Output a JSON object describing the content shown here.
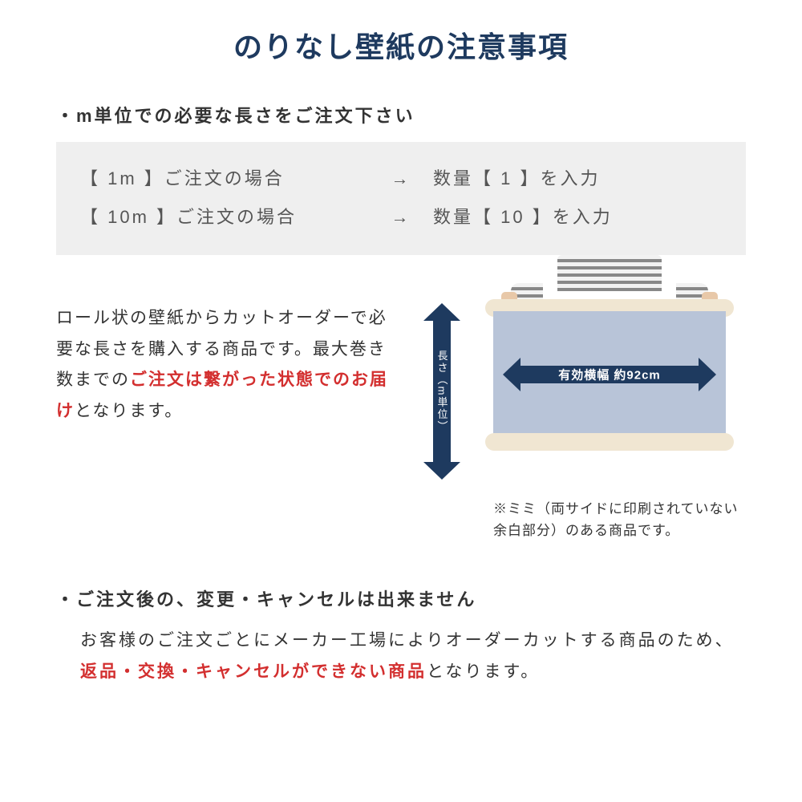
{
  "title": "のりなし壁紙の注意事項",
  "section1": {
    "subtitle": "・m単位での必要な長さをご注文下さい",
    "example": {
      "row1_left": "【 1m 】ご注文の場合",
      "row1_right": "数量【  1  】を入力",
      "row2_left": "【 10m 】ご注文の場合",
      "row2_right": "数量【 10 】を入力",
      "arrow": "→"
    },
    "body_pre": "ロール状の壁紙からカットオーダーで必要な長さを購入する商品です。最大巻き数までの",
    "body_red": "ご注文は繋がった状態でのお届け",
    "body_post": "となります。",
    "diagram": {
      "v_label": "長さ（m単位）",
      "h_label": "有効横幅 約92cm",
      "arrow_color": "#1e3a5f",
      "paper_color": "#b8c4d8",
      "roll_color": "#f0e6d2"
    },
    "note": "※ミミ（両サイドに印刷されていない　余白部分）のある商品です。"
  },
  "section2": {
    "subtitle": "・ご注文後の、変更・キャンセルは出来ません",
    "body_pre": "お客様のご注文ごとにメーカー工場によりオーダーカットする商品のため、",
    "body_red": "返品・交換・キャンセルができない商品",
    "body_post": "となります。"
  },
  "colors": {
    "title": "#1e3a5f",
    "text": "#333333",
    "red": "#d32f2f",
    "example_bg": "#efefef",
    "background": "#ffffff"
  }
}
